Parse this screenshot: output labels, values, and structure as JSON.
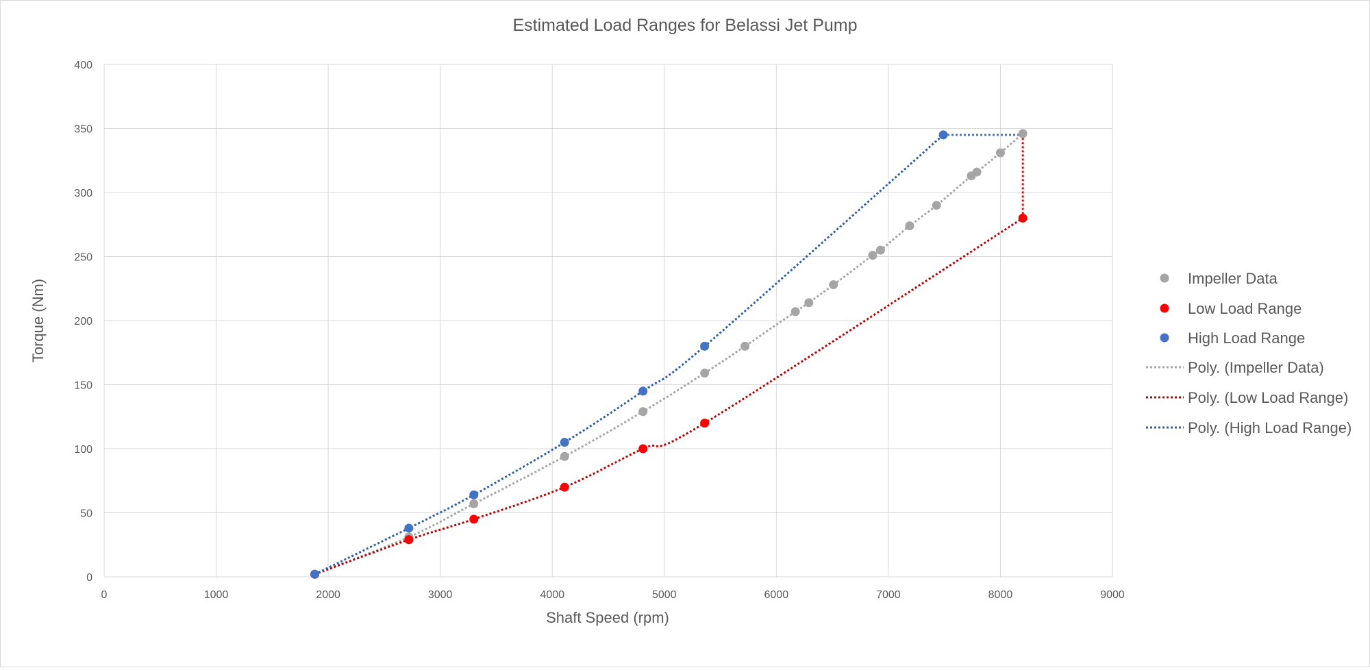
{
  "chart_data": {
    "type": "scatter",
    "title": "Estimated Load Ranges for Belassi Jet Pump",
    "xlabel": "Shaft Speed (rpm)",
    "ylabel": "Torque (Nm)",
    "xlim": [
      0,
      9000
    ],
    "ylim": [
      0,
      400
    ],
    "x_ticks": [
      "0",
      "1000",
      "2000",
      "3000",
      "4000",
      "5000",
      "6000",
      "7000",
      "8000",
      "9000"
    ],
    "y_ticks": [
      "0",
      "50",
      "100",
      "150",
      "200",
      "250",
      "300",
      "350",
      "400"
    ],
    "grid": true,
    "legend_position": "right",
    "series": [
      {
        "name": "Impeller Data",
        "color": "#a5a5a5",
        "x": [
          1880,
          2720,
          3300,
          4110,
          4810,
          5360,
          5720,
          6170,
          6290,
          6510,
          6860,
          6930,
          7190,
          7430,
          7740,
          7790,
          8000,
          8200
        ],
        "y": [
          2,
          31,
          57,
          94,
          129,
          159,
          180,
          207,
          214,
          228,
          251,
          255,
          274,
          290,
          313,
          316,
          331,
          346
        ]
      },
      {
        "name": "Low Load Range",
        "color": "#ff0000",
        "x": [
          1880,
          2720,
          3300,
          4110,
          4810,
          5360,
          8200
        ],
        "y": [
          2,
          29,
          45,
          70,
          100,
          120,
          280
        ]
      },
      {
        "name": "High Load Range",
        "color": "#4472c4",
        "x": [
          1880,
          2720,
          3300,
          4110,
          4810,
          5360,
          7490
        ],
        "y": [
          2,
          38,
          64,
          105,
          145,
          180,
          345
        ]
      }
    ],
    "trendlines": [
      {
        "name": "Poly. (Impeller Data)",
        "color": "#a5a5a5",
        "x": [
          1880,
          8200
        ],
        "poly": [
          -1.0,
          0.004,
          4e-06
        ]
      },
      {
        "name": "Poly. (Low Load Range)",
        "color": "#c00000",
        "x": [
          1880,
          8200
        ],
        "poly": [
          -1.0,
          0.004,
          4e-06
        ]
      },
      {
        "name": "Poly. (High Load Range)",
        "color": "#2e5faa",
        "x": [
          1880,
          7490
        ],
        "poly": [
          -1.0,
          0.004,
          4e-06
        ]
      }
    ],
    "extra_segments": [
      {
        "color": "#4472c4",
        "points": [
          [
            7490,
            345
          ],
          [
            8200,
            345
          ]
        ]
      },
      {
        "color": "#ff0000",
        "points": [
          [
            8200,
            280
          ],
          [
            8200,
            346
          ]
        ]
      }
    ]
  }
}
